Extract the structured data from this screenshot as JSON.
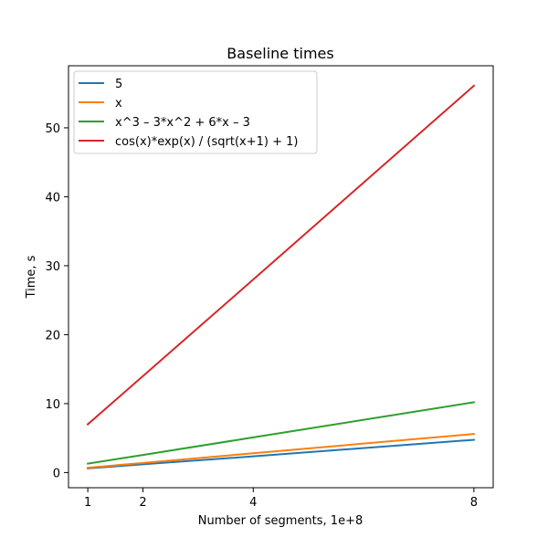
{
  "chart_data": {
    "type": "line",
    "title": "Baseline times",
    "xlabel": "Number of segments, 1e+8",
    "ylabel": "Time, s",
    "x": [
      1,
      2,
      4,
      8
    ],
    "xticks": [
      1,
      2,
      4,
      8
    ],
    "yticks": [
      0,
      10,
      20,
      30,
      40,
      50
    ],
    "xlim": [
      0.65,
      8.35
    ],
    "ylim": [
      -2.2,
      59.0
    ],
    "grid": false,
    "legend_position": "top-left",
    "series": [
      {
        "name": "5",
        "color": "#1f77b4",
        "values": [
          0.6,
          1.2,
          2.35,
          4.75
        ]
      },
      {
        "name": "x",
        "color": "#ff7f0e",
        "values": [
          0.7,
          1.4,
          2.8,
          5.6
        ]
      },
      {
        "name": "x^3 – 3*x^2 + 6*x – 3",
        "color": "#2ca02c",
        "values": [
          1.3,
          2.55,
          5.1,
          10.2
        ]
      },
      {
        "name": "cos(x)*exp(x) / (sqrt(x+1) + 1)",
        "color": "#d62728",
        "values": [
          7.0,
          14.0,
          28.0,
          56.1
        ]
      }
    ]
  }
}
